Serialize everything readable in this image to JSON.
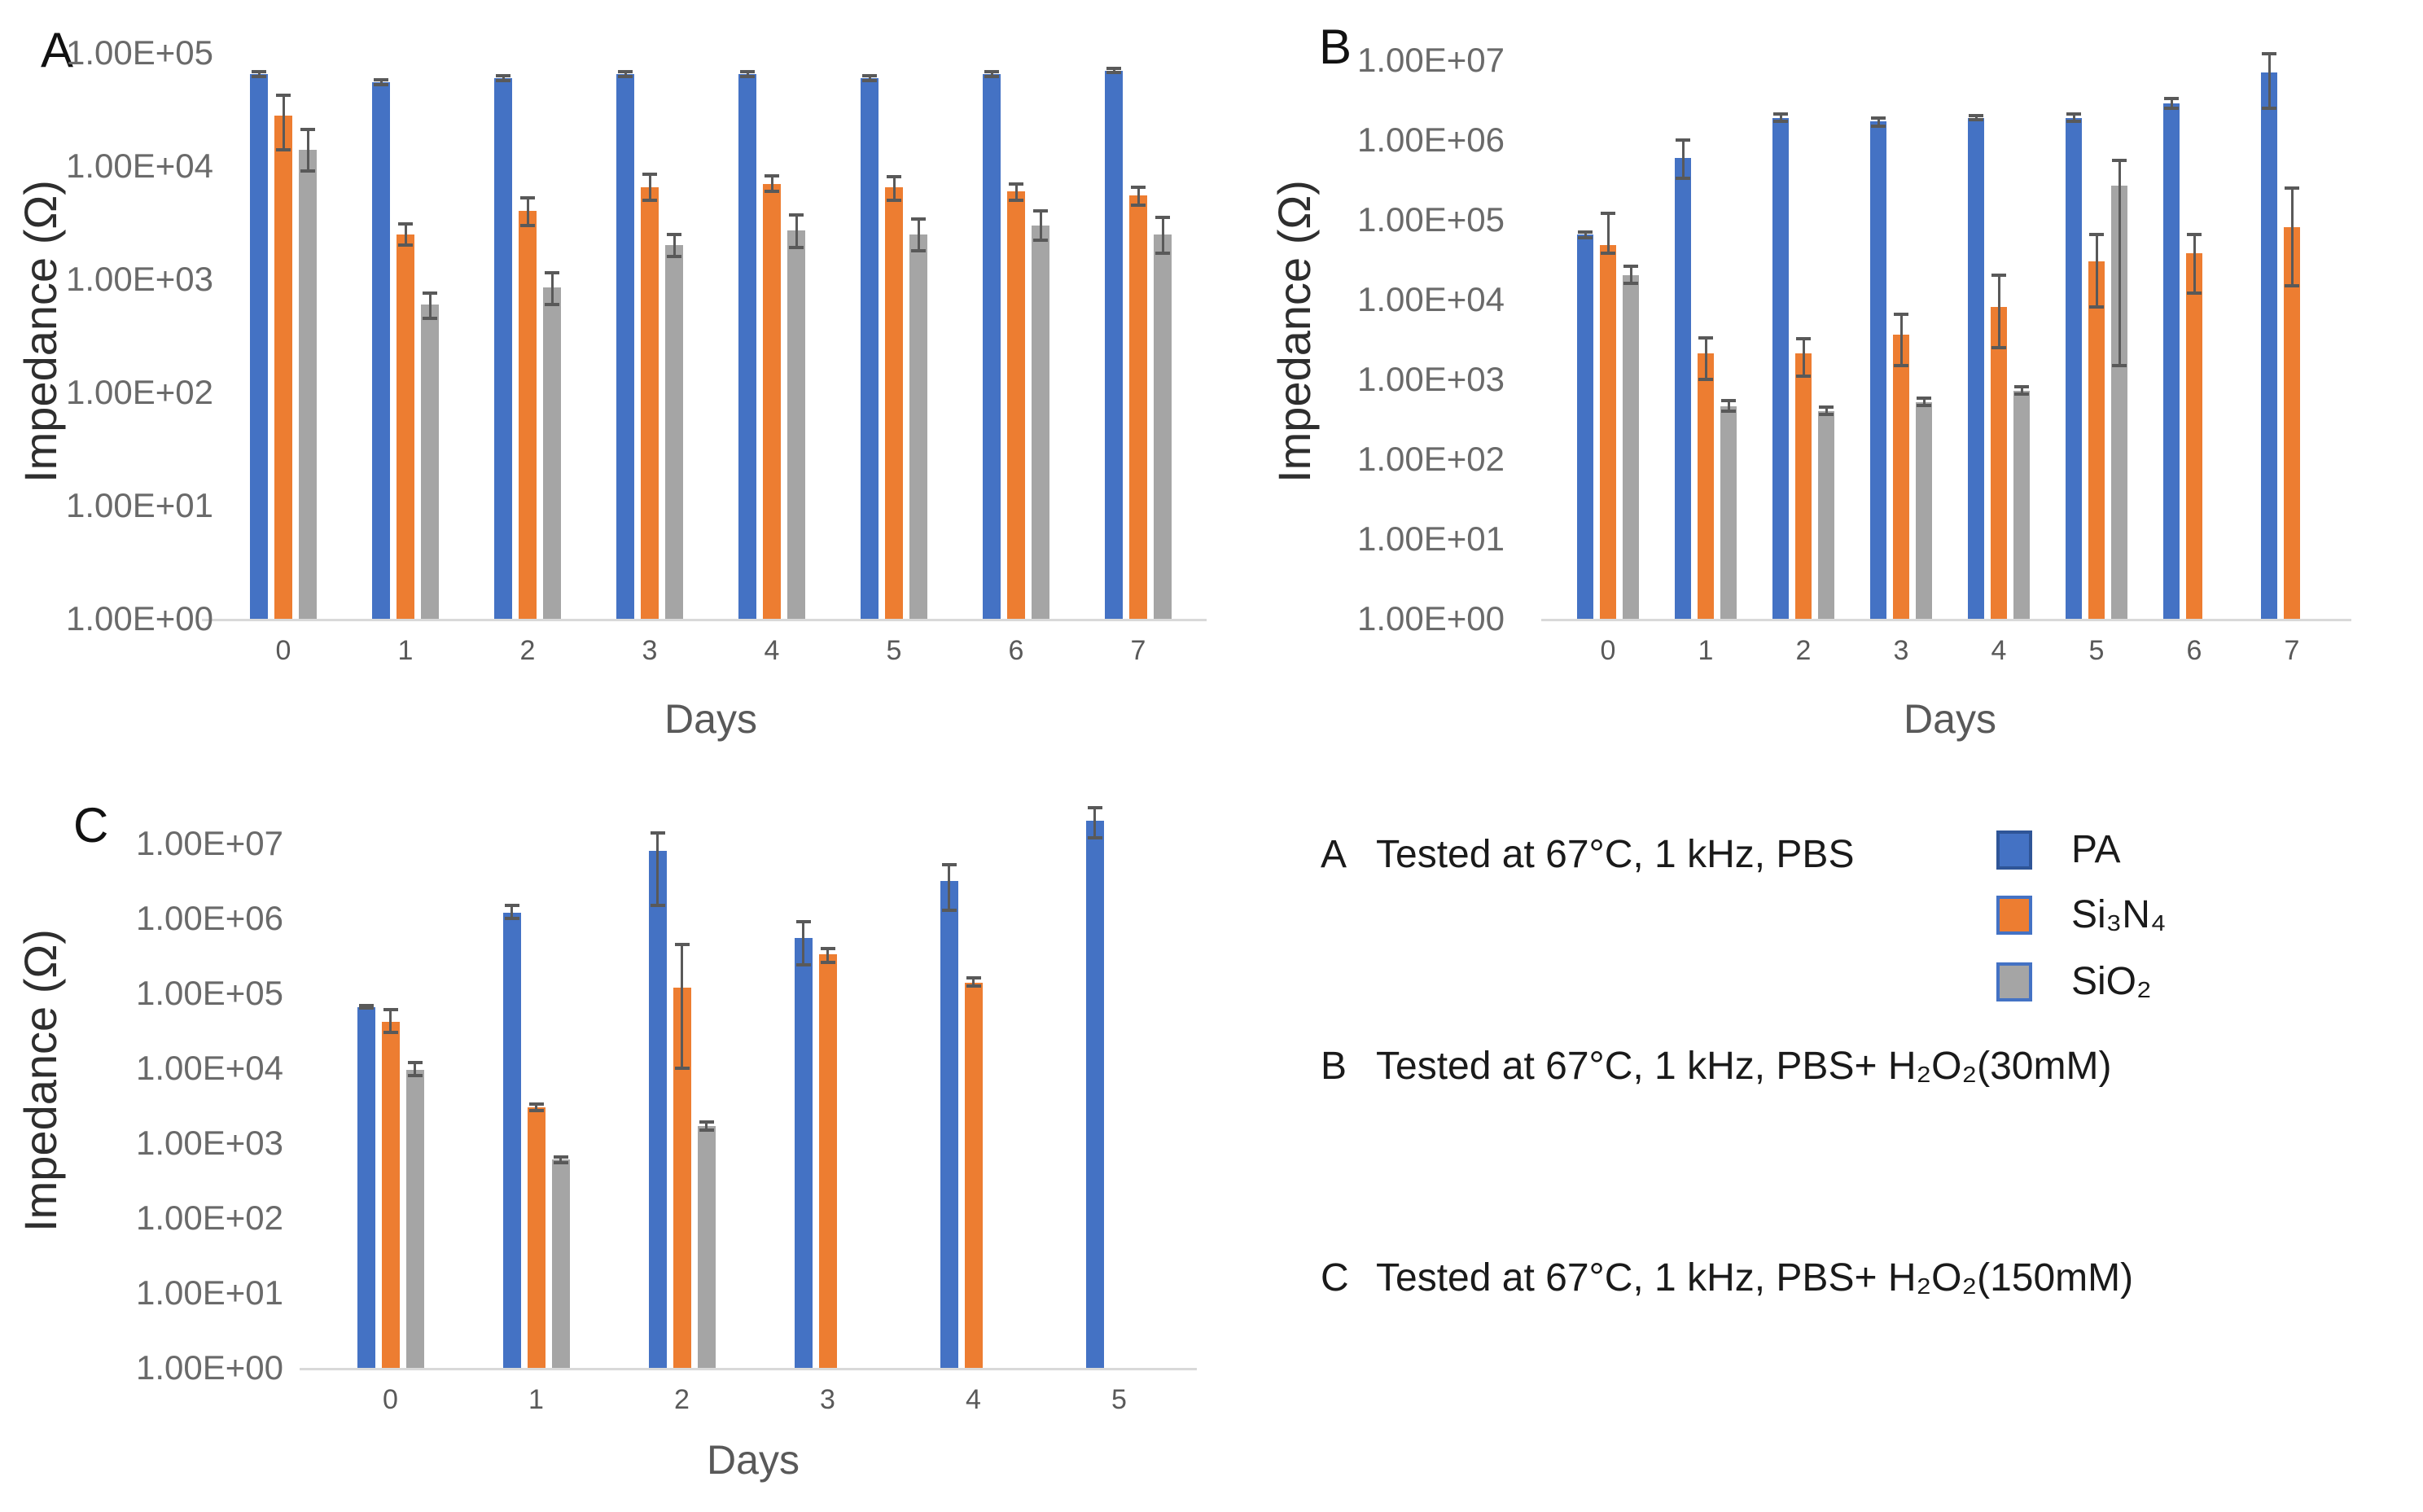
{
  "legend": {
    "items": [
      {
        "label": "PA",
        "color": "#4472C4",
        "border": "#2F5597"
      },
      {
        "label": "Si₃N₄",
        "color": "#ED7D31",
        "border": "#4472C4"
      },
      {
        "label": "SiO₂",
        "color": "#A5A5A5",
        "border": "#4472C4"
      }
    ]
  },
  "captions": [
    {
      "letter": "A",
      "text": "Tested at 67°C, 1 kHz, PBS"
    },
    {
      "letter": "B",
      "text": "Tested at 67°C, 1 kHz, PBS+ H₂O₂(30mM)"
    },
    {
      "letter": "C",
      "text": "Tested at 67°C, 1 kHz, PBS+ H₂O₂(150mM)"
    }
  ],
  "colors": {
    "pa": "#4472C4",
    "si3n4": "#ED7D31",
    "sio2": "#A5A5A5",
    "error_bar": "#595959",
    "axis_line": "#d9d9d9",
    "tick_text": "#6a6a6a"
  },
  "chart_data": [
    {
      "id": "A",
      "type": "bar",
      "panel_letter": "A",
      "ylabel": "Impedance (Ω)",
      "xlabel": "Days",
      "yscale": "log",
      "ylim": [
        1,
        100000
      ],
      "yticks": [
        "1.00E+05",
        "1.00E+04",
        "1.00E+03",
        "1.00E+02",
        "1.00E+01",
        "1.00E+00"
      ],
      "categories": [
        "0",
        "1",
        "2",
        "3",
        "4",
        "5",
        "6",
        "7"
      ],
      "series": [
        {
          "name": "PA",
          "values": [
            65000,
            55000,
            60000,
            65000,
            65000,
            60000,
            65000,
            70000
          ],
          "error_bars": [
            [
              62000,
              68000
            ],
            [
              52000,
              58000
            ],
            [
              57000,
              63000
            ],
            [
              62000,
              68000
            ],
            [
              62000,
              68000
            ],
            [
              57000,
              63000
            ],
            [
              62000,
              68000
            ],
            [
              67000,
              73000
            ]
          ]
        },
        {
          "name": "Si₃N₄",
          "values": [
            28000,
            2500,
            4000,
            6500,
            7000,
            6500,
            6000,
            5500
          ],
          "error_bars": [
            [
              14000,
              42000
            ],
            [
              2000,
              3100
            ],
            [
              3000,
              5200
            ],
            [
              5000,
              8500
            ],
            [
              6000,
              8200
            ],
            [
              5000,
              8000
            ],
            [
              5000,
              7000
            ],
            [
              4500,
              6500
            ]
          ]
        },
        {
          "name": "SiO₂",
          "values": [
            14000,
            600,
            850,
            2000,
            2700,
            2500,
            3000,
            2500
          ],
          "error_bars": [
            [
              9000,
              21000
            ],
            [
              450,
              750
            ],
            [
              600,
              1150
            ],
            [
              1600,
              2500
            ],
            [
              1900,
              3700
            ],
            [
              1800,
              3400
            ],
            [
              2200,
              4000
            ],
            [
              1700,
              3500
            ]
          ]
        }
      ]
    },
    {
      "id": "B",
      "type": "bar",
      "panel_letter": "B",
      "ylabel": "Impedance (Ω)",
      "xlabel": "Days",
      "yscale": "log",
      "ylim": [
        1,
        10000000
      ],
      "yticks": [
        "1.00E+07",
        "1.00E+06",
        "1.00E+05",
        "1.00E+04",
        "1.00E+03",
        "1.00E+02",
        "1.00E+01",
        "1.00E+00"
      ],
      "categories": [
        "0",
        "1",
        "2",
        "3",
        "4",
        "5",
        "6",
        "7"
      ],
      "series": [
        {
          "name": "PA",
          "values": [
            65000,
            600000,
            1900000,
            1700000,
            1900000,
            1900000,
            2900000,
            7000000
          ],
          "error_bars": [
            [
              60000,
              70000
            ],
            [
              330000,
              1000000
            ],
            [
              1700000,
              2100000
            ],
            [
              1500000,
              1900000
            ],
            [
              1800000,
              2000000
            ],
            [
              1700000,
              2100000
            ],
            [
              2500000,
              3300000
            ],
            [
              2500000,
              12000000
            ]
          ]
        },
        {
          "name": "Si₃N₄",
          "values": [
            48000,
            2100,
            2100,
            3600,
            8000,
            30000,
            38000,
            80000
          ],
          "error_bars": [
            [
              38000,
              120000
            ],
            [
              1000,
              3300
            ],
            [
              1100,
              3200
            ],
            [
              1500,
              6500
            ],
            [
              2500,
              20000
            ],
            [
              8000,
              65000
            ],
            [
              12000,
              65000
            ],
            [
              15000,
              250000
            ]
          ]
        },
        {
          "name": "SiO₂",
          "values": [
            20000,
            460,
            400,
            520,
            720,
            270000,
            null,
            null
          ],
          "error_bars": [
            [
              16000,
              26000
            ],
            [
              400,
              540
            ],
            [
              360,
              450
            ],
            [
              470,
              580
            ],
            [
              650,
              800
            ],
            [
              1500,
              550000
            ],
            null,
            null
          ]
        }
      ]
    },
    {
      "id": "C",
      "type": "bar",
      "panel_letter": "C",
      "ylabel": "Impedance (Ω)",
      "xlabel": "Days",
      "yscale": "log",
      "ylim": [
        1,
        10000000
      ],
      "yticks": [
        "1.00E+07",
        "1.00E+06",
        "1.00E+05",
        "1.00E+04",
        "1.00E+03",
        "1.00E+02",
        "1.00E+01",
        "1.00E+00"
      ],
      "categories": [
        "0",
        "1",
        "2",
        "3",
        "4",
        "5"
      ],
      "series": [
        {
          "name": "PA",
          "values": [
            65000,
            1200000,
            8000000,
            550000,
            3200000,
            20000000
          ],
          "error_bars": [
            [
              63000,
              68000
            ],
            [
              1000000,
              1500000
            ],
            [
              1500000,
              14000000
            ],
            [
              240000,
              900000
            ],
            [
              1300000,
              5200000
            ],
            [
              12000000,
              30000000
            ]
          ]
        },
        {
          "name": "Si₃N₄",
          "values": [
            42000,
            3000,
            120000,
            330000,
            140000,
            null
          ],
          "error_bars": [
            [
              30000,
              60000
            ],
            [
              2700,
              3300
            ],
            [
              10000,
              450000
            ],
            [
              260000,
              400000
            ],
            [
              125000,
              160000
            ],
            null
          ]
        },
        {
          "name": "SiO₂",
          "values": [
            9500,
            600,
            1700,
            null,
            null,
            null
          ],
          "error_bars": [
            [
              8000,
              12000
            ],
            [
              550,
              660
            ],
            [
              1500,
              1900
            ],
            null,
            null,
            null
          ]
        }
      ]
    }
  ]
}
